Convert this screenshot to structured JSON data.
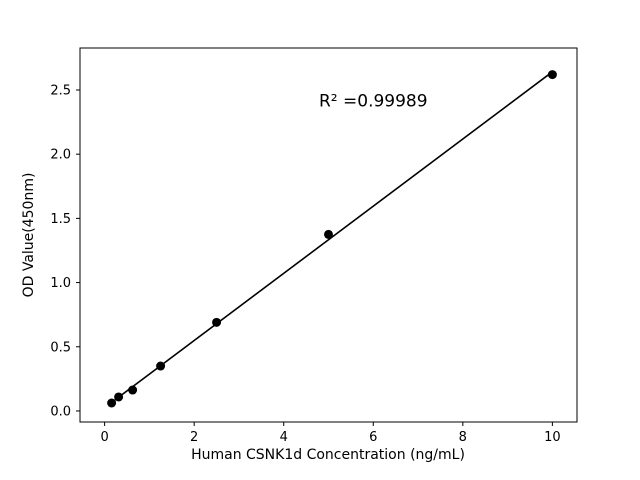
{
  "chart_data": {
    "type": "scatter",
    "title": "",
    "xlabel": "Human CSNK1d Concentration (ng/mL)",
    "ylabel": "OD Value(450nm)",
    "x": [
      0.156,
      0.3125,
      0.625,
      1.25,
      2.5,
      5,
      10
    ],
    "y": [
      0.062,
      0.109,
      0.163,
      0.35,
      0.69,
      1.375,
      2.62
    ],
    "fit_line": true,
    "annotations": [
      {
        "text": "R² =0.99989",
        "x": 6.0,
        "y": 2.42
      }
    ],
    "xlim": [
      -0.55,
      10.55
    ],
    "ylim": [
      -0.086,
      2.827
    ],
    "x_ticks": [
      0,
      2,
      4,
      6,
      8,
      10
    ],
    "x_tick_labels": [
      "0",
      "2",
      "4",
      "6",
      "8",
      "10"
    ],
    "y_ticks": [
      0.0,
      0.5,
      1.0,
      1.5,
      2.0,
      2.5
    ],
    "y_tick_labels": [
      "0.0",
      "0.5",
      "1.0",
      "1.5",
      "2.0",
      "2.5"
    ],
    "grid": false,
    "legend": "none",
    "marker_color": "#000000",
    "line_color": "#000000",
    "background_color": "#ffffff"
  }
}
